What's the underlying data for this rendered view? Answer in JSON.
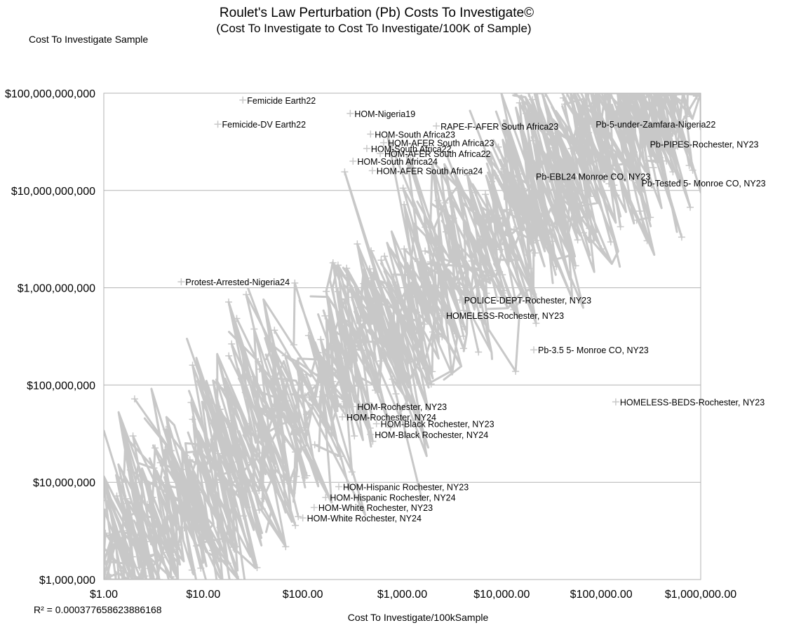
{
  "chart_data": {
    "type": "scatter",
    "title": "Roulet's Law Perturbation (Pb) Costs To Investigate©",
    "subtitle": "(Cost To Investigate to Cost To Investigate/100K of Sample)",
    "xlabel": "Cost To Investigate/100kSample",
    "ylabel": "Cost To Investigate Sample",
    "xscale": "log",
    "yscale": "log",
    "xlim": [
      1,
      1000000
    ],
    "ylim": [
      1000000,
      100000000000
    ],
    "x_ticks": [
      1,
      10,
      100,
      1000,
      10000,
      100000,
      1000000
    ],
    "y_ticks": [
      1000000,
      10000000,
      100000000,
      1000000000,
      10000000000,
      100000000000
    ],
    "x_tick_labels": [
      "$1.00",
      "$10.00",
      "$100.00",
      "$1,000.00",
      "$10,000.00",
      "$100,000.00",
      "$1,000,000.00"
    ],
    "y_tick_labels": [
      "$1,000,000",
      "$10,000,000",
      "$100,000,000",
      "$1,000,000,000",
      "$10,000,000,000",
      "$100,000,000,000"
    ],
    "grid": true,
    "r_squared_label": "R² = 0.000377658623886168",
    "series_color": "#c8c8c8",
    "marker": "plus",
    "labeled_points": [
      {
        "label": "Femicide Earth22",
        "x": 25,
        "y": 85000000000
      },
      {
        "label": "Femicide-DV Earth22",
        "x": 14,
        "y": 48000000000
      },
      {
        "label": "HOM-Nigeria19",
        "x": 300,
        "y": 62000000000
      },
      {
        "label": "RAPE-F-AFER South Africa23",
        "x": 2200,
        "y": 46000000000
      },
      {
        "label": "Pb-5-under-Zamfara-Nigeria22",
        "x": 80000,
        "y": 48000000000
      },
      {
        "label": "HOM-South Africa23",
        "x": 480,
        "y": 38000000000
      },
      {
        "label": "HOM-AFER South Africa23",
        "x": 650,
        "y": 31000000000
      },
      {
        "label": "Pb-PIPES-Rochester, NY23",
        "x": 280000,
        "y": 30000000000
      },
      {
        "label": "HOM-South Africa22",
        "x": 440,
        "y": 27000000000
      },
      {
        "label": "HOM-AFER South Africa22",
        "x": 600,
        "y": 24000000000
      },
      {
        "label": "HOM-South Africa24",
        "x": 320,
        "y": 20000000000
      },
      {
        "label": "HOM-AFER South Africa24",
        "x": 500,
        "y": 16000000000
      },
      {
        "label": "Pb-EBL24 Monroe CO, NY23",
        "x": 20000,
        "y": 14000000000
      },
      {
        "label": "Pb-Tested 5- Monroe CO, NY23",
        "x": 230000,
        "y": 12000000000
      },
      {
        "label": "Protest-Arrested-Nigeria24",
        "x": 6,
        "y": 1150000000
      },
      {
        "label": "POLICE-DEPT-Rochester, NY23",
        "x": 3800,
        "y": 750000000
      },
      {
        "label": "HOMELESS-Rochester, NY23",
        "x": 2500,
        "y": 520000000
      },
      {
        "label": "Pb-3.5 5- Monroe CO, NY23",
        "x": 21000,
        "y": 230000000
      },
      {
        "label": "HOMELESS-BEDS-Rochester, NY23",
        "x": 140000,
        "y": 67000000
      },
      {
        "label": "HOM-Rochester, NY23",
        "x": 320,
        "y": 60000000
      },
      {
        "label": "HOM-Rochester, NY24",
        "x": 250,
        "y": 47000000
      },
      {
        "label": "HOM-Black Rochester, NY23",
        "x": 550,
        "y": 40000000
      },
      {
        "label": "HOM-Black Rochester, NY24",
        "x": 480,
        "y": 31000000
      },
      {
        "label": "HOM-Hispanic Rochester, NY23",
        "x": 230,
        "y": 9000000
      },
      {
        "label": "HOM-Hispanic Rochester, NY24",
        "x": 170,
        "y": 7000000
      },
      {
        "label": "HOM-White Rochester, NY23",
        "x": 130,
        "y": 5500000
      },
      {
        "label": "HOM-White Rochester, NY24",
        "x": 100,
        "y": 4300000
      }
    ]
  }
}
